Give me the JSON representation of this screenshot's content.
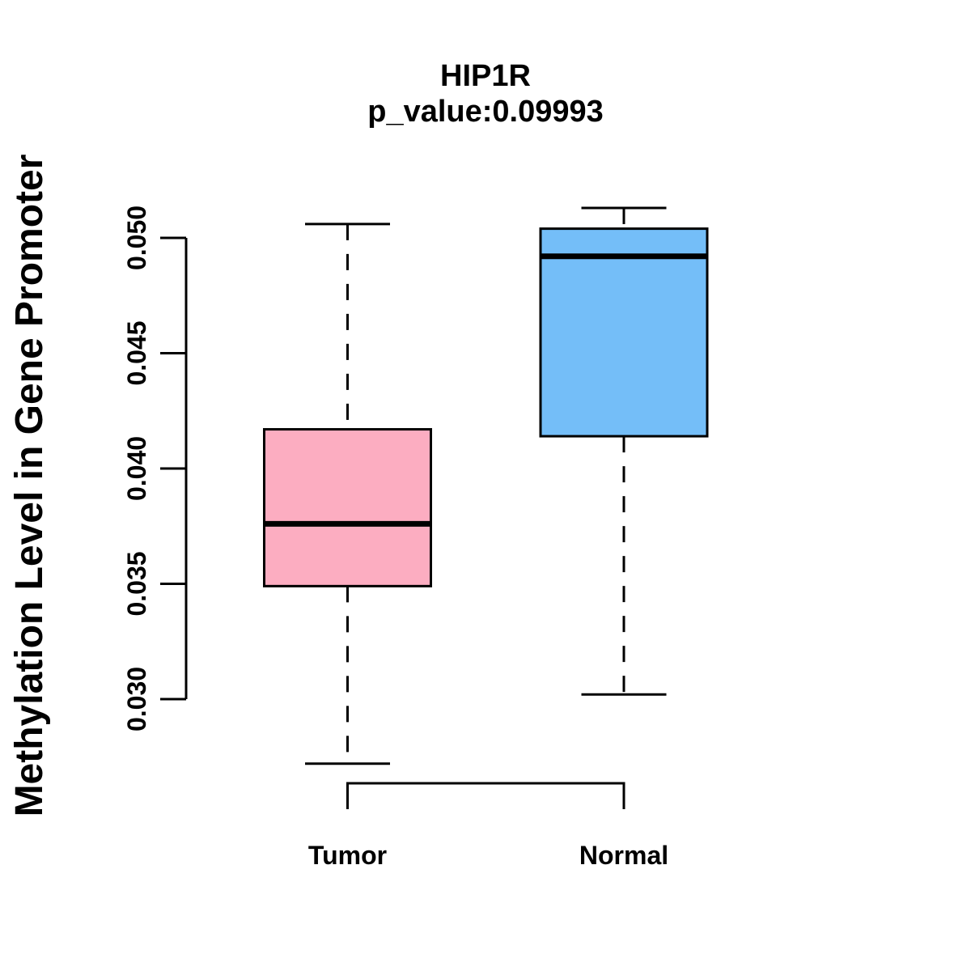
{
  "figure": {
    "background": "#FFFFFF",
    "title": "HIP1R",
    "subtitle": "p_value:0.09993",
    "y_axis_label": "Methylation Level in Gene Promoter"
  },
  "colors": {
    "tumor_fill": "#FCADC1",
    "normal_fill": "#74BEF8",
    "line": "#000000"
  },
  "chart_data": {
    "type": "boxplot",
    "title": "HIP1R",
    "subtitle": "p_value:0.09993",
    "ylabel": "Methylation Level in Gene Promoter",
    "xlabel": "",
    "categories": [
      "Tumor",
      "Normal"
    ],
    "series": [
      {
        "name": "Tumor",
        "fill": "#FCADC1",
        "whisker_low": 0.0272,
        "q1": 0.0349,
        "median": 0.0376,
        "q3": 0.0417,
        "whisker_high": 0.0506
      },
      {
        "name": "Normal",
        "fill": "#74BEF8",
        "whisker_low": 0.0302,
        "q1": 0.0414,
        "median": 0.0492,
        "q3": 0.0504,
        "whisker_high": 0.0513
      }
    ],
    "y_ticks": [
      "0.030",
      "0.035",
      "0.040",
      "0.045",
      "0.050"
    ],
    "y_tick_values": [
      0.03,
      0.035,
      0.04,
      0.045,
      0.05
    ],
    "ylim": [
      0.0265,
      0.0517
    ],
    "grid": false,
    "legend": "none"
  }
}
